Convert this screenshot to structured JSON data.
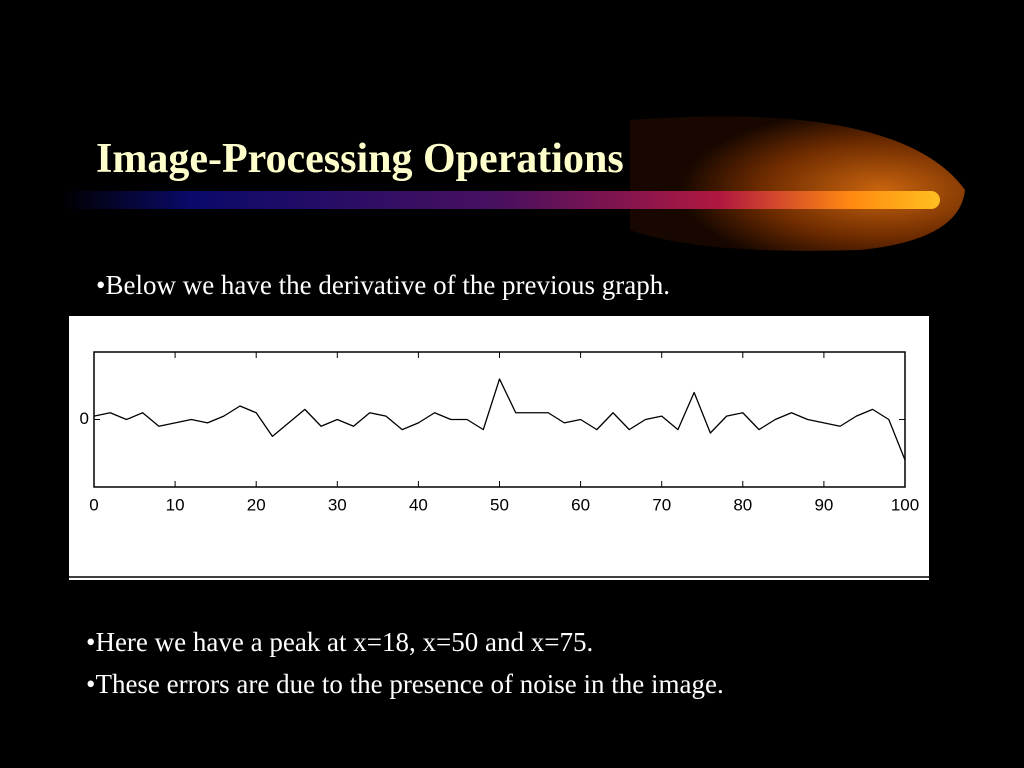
{
  "title": "Image-Processing Operations",
  "intro": "•Below we have the derivative of the previous graph.",
  "bullets": [
    "•Here we have a peak at x=18, x=50 and x=75.",
    "•These errors are due to the presence of noise in the image."
  ],
  "chart_data": {
    "type": "line",
    "color": "#000000",
    "x": [
      0,
      2,
      4,
      6,
      8,
      10,
      12,
      14,
      16,
      18,
      20,
      22,
      24,
      26,
      28,
      30,
      32,
      34,
      36,
      38,
      40,
      42,
      44,
      46,
      48,
      50,
      52,
      54,
      56,
      58,
      60,
      62,
      64,
      66,
      68,
      70,
      72,
      74,
      76,
      78,
      80,
      82,
      84,
      86,
      88,
      90,
      92,
      94,
      96,
      98,
      100
    ],
    "values": [
      0.05,
      0.1,
      0.0,
      0.1,
      -0.1,
      -0.05,
      0.0,
      -0.05,
      0.05,
      0.2,
      0.1,
      -0.25,
      -0.05,
      0.15,
      -0.1,
      0.0,
      -0.1,
      0.1,
      0.05,
      -0.15,
      -0.05,
      0.1,
      0.0,
      0.0,
      -0.15,
      0.6,
      0.1,
      0.1,
      0.1,
      -0.05,
      0.0,
      -0.15,
      0.1,
      -0.15,
      0.0,
      0.05,
      -0.15,
      0.4,
      -0.2,
      0.05,
      0.1,
      -0.15,
      0.0,
      0.1,
      0.0,
      -0.05,
      -0.1,
      0.05,
      0.15,
      0.0,
      -0.6
    ],
    "xlim": [
      0,
      100
    ],
    "xticks": [
      0,
      10,
      20,
      30,
      40,
      50,
      60,
      70,
      80,
      90,
      100
    ],
    "ylim": [
      -1,
      1
    ],
    "yticks": [
      0
    ]
  }
}
